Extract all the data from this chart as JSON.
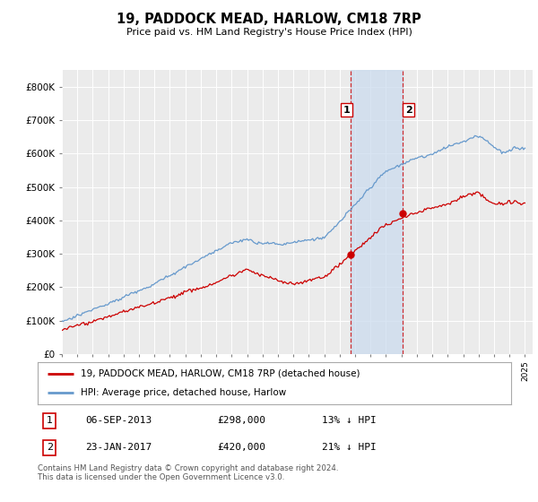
{
  "title": "19, PADDOCK MEAD, HARLOW, CM18 7RP",
  "subtitle": "Price paid vs. HM Land Registry's House Price Index (HPI)",
  "ylabel_ticks": [
    "£0",
    "£100K",
    "£200K",
    "£300K",
    "£400K",
    "£500K",
    "£600K",
    "£700K",
    "£800K"
  ],
  "ytick_vals": [
    0,
    100000,
    200000,
    300000,
    400000,
    500000,
    600000,
    700000,
    800000
  ],
  "ylim": [
    0,
    850000
  ],
  "xlim_start": 1995.0,
  "xlim_end": 2025.5,
  "hpi_color": "#6699cc",
  "price_color": "#cc0000",
  "shade_color": "#ccdcee",
  "vline_color": "#cc0000",
  "transaction1_date": 2013.68,
  "transaction1_price": 298000,
  "transaction2_date": 2017.07,
  "transaction2_price": 420000,
  "legend_label1": "19, PADDOCK MEAD, HARLOW, CM18 7RP (detached house)",
  "legend_label2": "HPI: Average price, detached house, Harlow",
  "table_row1": [
    "1",
    "06-SEP-2013",
    "£298,000",
    "13% ↓ HPI"
  ],
  "table_row2": [
    "2",
    "23-JAN-2017",
    "£420,000",
    "21% ↓ HPI"
  ],
  "footnote": "Contains HM Land Registry data © Crown copyright and database right 2024.\nThis data is licensed under the Open Government Licence v3.0.",
  "background_color": "#ffffff",
  "plot_bg_color": "#ebebeb"
}
